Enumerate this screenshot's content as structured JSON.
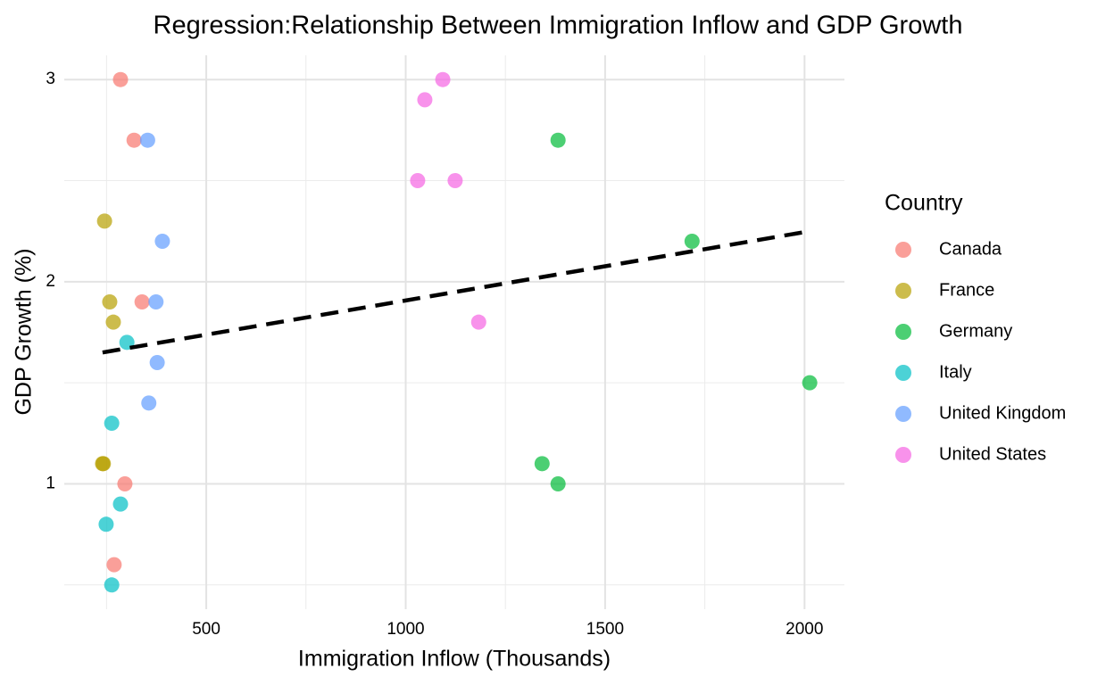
{
  "chart_data": {
    "type": "scatter",
    "title": "Regression:Relationship Between Immigration Inflow and GDP Growth",
    "x_label": "Immigration Inflow (Thousands)",
    "y_label": "GDP Growth (%)",
    "legend_title": "Country",
    "legend_position": "right",
    "grid": true,
    "xlim": [
      144,
      2100
    ],
    "xticks": [
      500,
      1000,
      1500,
      2000
    ],
    "xminor": [
      250,
      750,
      1250,
      1750
    ],
    "ylim": [
      0.38,
      3.12
    ],
    "yticks": [
      1,
      2,
      3
    ],
    "yminor": [
      0.5,
      1.5,
      2.5
    ],
    "series": [
      {
        "name": "Canada",
        "color": "#F8766D",
        "x": [
          285,
          319,
          339,
          296,
          269
        ],
        "values": [
          3.0,
          2.7,
          1.9,
          1.0,
          0.6
        ]
      },
      {
        "name": "France",
        "color": "#B79F00",
        "x": [
          245,
          258,
          267,
          240,
          242
        ],
        "values": [
          2.3,
          1.9,
          1.8,
          1.1,
          1.1
        ]
      },
      {
        "name": "Germany",
        "color": "#00BA38",
        "x": [
          1382,
          1718,
          2013,
          1342,
          1382
        ],
        "values": [
          2.7,
          2.2,
          1.5,
          1.1,
          1.0
        ]
      },
      {
        "name": "Italy",
        "color": "#00BFC4",
        "x": [
          301,
          263,
          285,
          249,
          263
        ],
        "values": [
          1.7,
          1.3,
          0.9,
          0.8,
          0.5
        ]
      },
      {
        "name": "United Kingdom",
        "color": "#619CFF",
        "x": [
          353,
          390,
          374,
          377,
          356
        ],
        "values": [
          2.7,
          2.2,
          1.9,
          1.6,
          1.4
        ]
      },
      {
        "name": "United States",
        "color": "#F564E3",
        "x": [
          1093,
          1048,
          1030,
          1124,
          1183
        ],
        "values": [
          3.0,
          2.9,
          2.5,
          2.5,
          1.8
        ]
      }
    ],
    "fit": {
      "color": "#000000",
      "dashed": true,
      "x": [
        240,
        2013
      ],
      "values": [
        1.65,
        2.25
      ]
    }
  }
}
